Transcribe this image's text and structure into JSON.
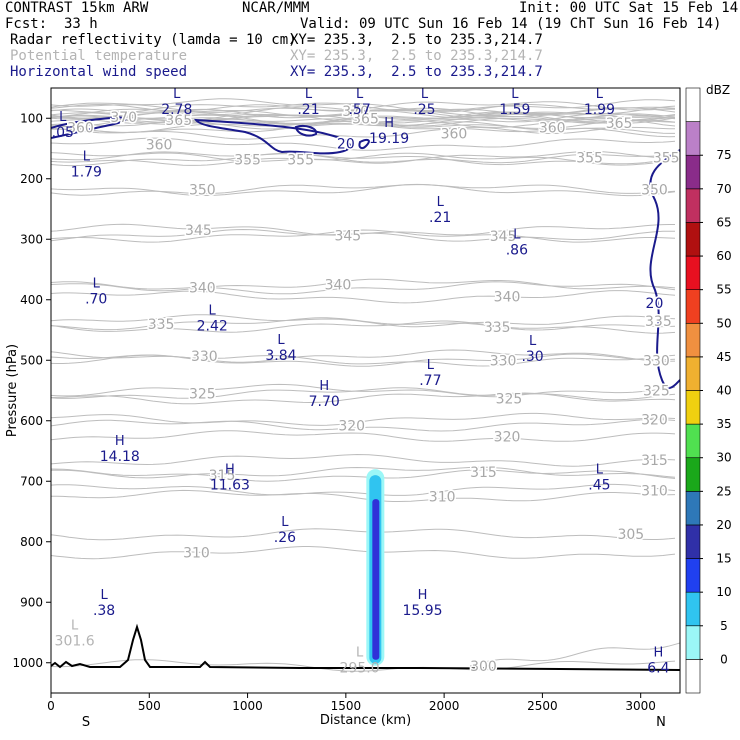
{
  "header": {
    "model": "CONTRAST 15km ARW",
    "institution": "NCAR/MMM",
    "init": "Init: 00 UTC Sat 15 Feb 14",
    "fcst_label": "Fcst:",
    "fcst_value": "33 h",
    "valid": "Valid: 09 UTC Sun 16 Feb 14 (19 ChT Sun 16 Feb 14)",
    "fields": [
      {
        "name": "Radar reflectivity (lamda = 10 cm)",
        "xy": "XY= 235.3,  2.5 to 235.3,214.7",
        "color": "#000000"
      },
      {
        "name": "Potential temperature",
        "xy": "XY= 235.3,  2.5 to 235.3,214.7",
        "color": "#b4b4b4"
      },
      {
        "name": "Horizontal wind speed",
        "xy": "XY= 235.3,  2.5 to 235.3,214.7",
        "color": "#1a1a8c"
      }
    ]
  },
  "chart_data": {
    "type": "cross-section",
    "xlabel": "Distance (km)",
    "ylabel": "Pressure (hPa)",
    "xlim": [
      0,
      3200
    ],
    "ylim": [
      1050,
      50
    ],
    "x_ticks": [
      0,
      500,
      1000,
      1500,
      2000,
      2500,
      3000
    ],
    "y_ticks": [
      100,
      200,
      300,
      400,
      500,
      600,
      700,
      800,
      900,
      1000
    ],
    "endpoints": {
      "left": "S",
      "right": "N"
    },
    "theta_labels": [
      {
        "x": 370,
        "p": 98,
        "text": "370"
      },
      {
        "x": 650,
        "p": 103,
        "text": "365"
      },
      {
        "x": 1550,
        "p": 88,
        "text": "370"
      },
      {
        "x": 1600,
        "p": 100,
        "text": "365"
      },
      {
        "x": 2550,
        "p": 115,
        "text": "360"
      },
      {
        "x": 2890,
        "p": 108,
        "text": "365"
      },
      {
        "x": 150,
        "p": 115,
        "text": "360"
      },
      {
        "x": 550,
        "p": 143,
        "text": "360"
      },
      {
        "x": 2050,
        "p": 125,
        "text": "360"
      },
      {
        "x": 1000,
        "p": 168,
        "text": "355"
      },
      {
        "x": 1270,
        "p": 168,
        "text": "355"
      },
      {
        "x": 2740,
        "p": 165,
        "text": "355"
      },
      {
        "x": 3130,
        "p": 165,
        "text": "355"
      },
      {
        "x": 770,
        "p": 218,
        "text": "350"
      },
      {
        "x": 3070,
        "p": 218,
        "text": "350"
      },
      {
        "x": 750,
        "p": 285,
        "text": "345"
      },
      {
        "x": 1510,
        "p": 294,
        "text": "345"
      },
      {
        "x": 2300,
        "p": 295,
        "text": "345"
      },
      {
        "x": 770,
        "p": 380,
        "text": "340"
      },
      {
        "x": 1460,
        "p": 375,
        "text": "340"
      },
      {
        "x": 2320,
        "p": 395,
        "text": "340"
      },
      {
        "x": 560,
        "p": 440,
        "text": "335"
      },
      {
        "x": 2270,
        "p": 445,
        "text": "335"
      },
      {
        "x": 3090,
        "p": 435,
        "text": "335"
      },
      {
        "x": 780,
        "p": 493,
        "text": "330"
      },
      {
        "x": 2300,
        "p": 500,
        "text": "330"
      },
      {
        "x": 3080,
        "p": 500,
        "text": "330"
      },
      {
        "x": 770,
        "p": 555,
        "text": "325"
      },
      {
        "x": 2330,
        "p": 563,
        "text": "325"
      },
      {
        "x": 3080,
        "p": 550,
        "text": "325"
      },
      {
        "x": 1530,
        "p": 608,
        "text": "320"
      },
      {
        "x": 2320,
        "p": 626,
        "text": "320"
      },
      {
        "x": 3070,
        "p": 598,
        "text": "320"
      },
      {
        "x": 870,
        "p": 690,
        "text": "315"
      },
      {
        "x": 2200,
        "p": 685,
        "text": "315"
      },
      {
        "x": 3070,
        "p": 665,
        "text": "315"
      },
      {
        "x": 1990,
        "p": 725,
        "text": "310"
      },
      {
        "x": 3070,
        "p": 715,
        "text": "310"
      },
      {
        "x": 740,
        "p": 818,
        "text": "310"
      },
      {
        "x": 2950,
        "p": 787,
        "text": "305"
      },
      {
        "x": 2200,
        "p": 1005,
        "text": "300"
      }
    ],
    "wind_contours": [
      {
        "x": 1500,
        "p": 142,
        "text": "20"
      },
      {
        "x": 3070,
        "p": 405,
        "text": "20"
      }
    ],
    "extrema": [
      {
        "kind": "L",
        "x": 640,
        "p": 80,
        "value": "2.78"
      },
      {
        "kind": "L",
        "x": 60,
        "p": 118,
        "value": ".05"
      },
      {
        "kind": "L",
        "x": 1310,
        "p": 80,
        "value": ".21"
      },
      {
        "kind": "L",
        "x": 1570,
        "p": 80,
        "value": ".57"
      },
      {
        "kind": "L",
        "x": 1900,
        "p": 80,
        "value": ".25"
      },
      {
        "kind": "L",
        "x": 2360,
        "p": 80,
        "value": "1.59"
      },
      {
        "kind": "L",
        "x": 2790,
        "p": 80,
        "value": "1.99"
      },
      {
        "kind": "H",
        "x": 1720,
        "p": 128,
        "value": "19.19"
      },
      {
        "kind": "L",
        "x": 180,
        "p": 183,
        "value": "1.79"
      },
      {
        "kind": "L",
        "x": 1980,
        "p": 258,
        "value": ".21"
      },
      {
        "kind": "L",
        "x": 2370,
        "p": 312,
        "value": ".86"
      },
      {
        "kind": "L",
        "x": 230,
        "p": 393,
        "value": ".70"
      },
      {
        "kind": "L",
        "x": 820,
        "p": 438,
        "value": "2.42"
      },
      {
        "kind": "L",
        "x": 1170,
        "p": 486,
        "value": "3.84"
      },
      {
        "kind": "L",
        "x": 2450,
        "p": 488,
        "value": ".30"
      },
      {
        "kind": "L",
        "x": 1930,
        "p": 528,
        "value": ".77"
      },
      {
        "kind": "H",
        "x": 1390,
        "p": 562,
        "value": "7.70"
      },
      {
        "kind": "H",
        "x": 350,
        "p": 653,
        "value": "14.18"
      },
      {
        "kind": "H",
        "x": 910,
        "p": 700,
        "value": "11.63"
      },
      {
        "kind": "L",
        "x": 2790,
        "p": 700,
        "value": ".45"
      },
      {
        "kind": "L",
        "x": 1190,
        "p": 787,
        "value": ".26"
      },
      {
        "kind": "L",
        "x": 270,
        "p": 908,
        "value": ".38"
      },
      {
        "kind": "H",
        "x": 1890,
        "p": 908,
        "value": "15.95"
      },
      {
        "kind": "L",
        "x": 120,
        "p": 958,
        "value": "301.6"
      },
      {
        "kind": "L",
        "x": 1570,
        "p": 1003,
        "value": "295.0"
      },
      {
        "kind": "H",
        "x": 3090,
        "p": 1003,
        "value": "6.4"
      }
    ],
    "reflectivity_core": {
      "x_center_km": 1650,
      "p_top_hpa": 680,
      "p_bottom_hpa": 1005,
      "max_dbz": 20
    },
    "colorbar": {
      "unit": "dBZ",
      "levels": [
        "0",
        "5",
        "10",
        "15",
        "20",
        "25",
        "30",
        "35",
        "40",
        "45",
        "50",
        "55",
        "60",
        "65",
        "70",
        "75"
      ],
      "colors": [
        "#ffffff",
        "#9bf7f7",
        "#30c4f0",
        "#2040f0",
        "#3030a8",
        "#2e78b8",
        "#1aa81a",
        "#50e050",
        "#f0d010",
        "#f0b030",
        "#f09040",
        "#f04020",
        "#e81020",
        "#b01010",
        "#c03060",
        "#8a2c8a",
        "#bb80c8",
        "#ffffff"
      ]
    }
  }
}
